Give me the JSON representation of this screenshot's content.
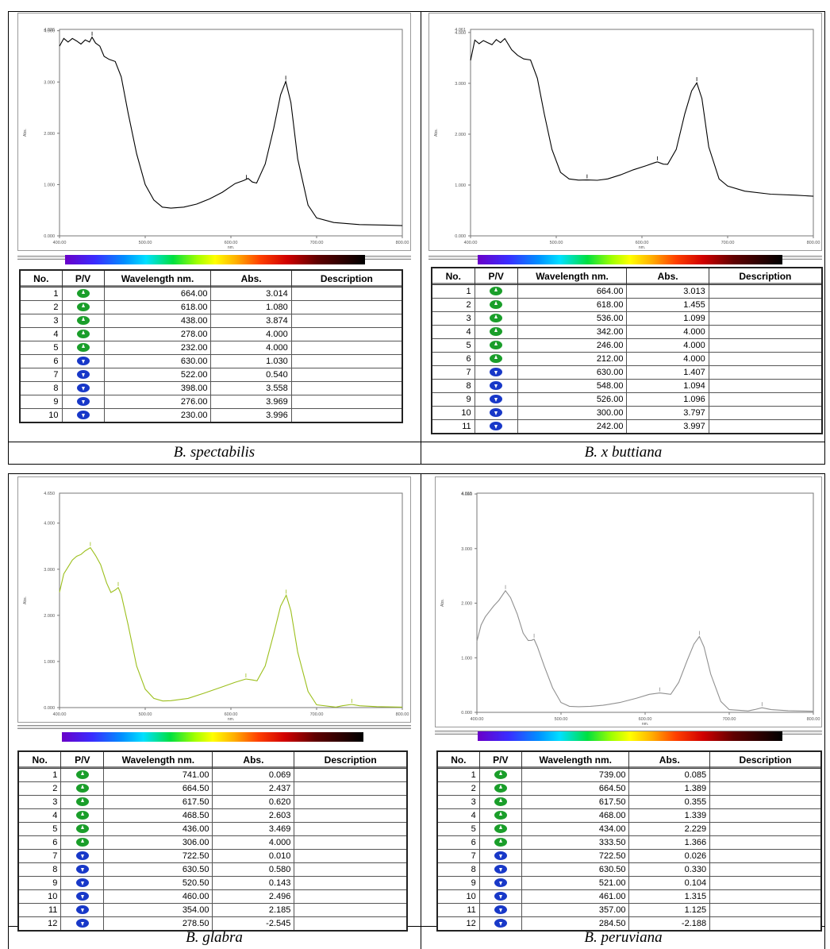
{
  "table_headers": [
    "No.",
    "P/V",
    "Wavelength nm.",
    "Abs.",
    "Description"
  ],
  "icons": {
    "peak": "peak-icon",
    "valley": "valley-icon"
  },
  "colors": {
    "peak": "#1a9e2a",
    "valley": "#1838c8"
  },
  "panels": [
    {
      "caption": "B. spectabilis",
      "ytop_label": "4.026",
      "ylabel": "Abs.",
      "xlabel": "nm.",
      "rows": [
        {
          "no": "1",
          "pv": "peak",
          "wl": "664.00",
          "abs": "3.014"
        },
        {
          "no": "2",
          "pv": "peak",
          "wl": "618.00",
          "abs": "1.080"
        },
        {
          "no": "3",
          "pv": "peak",
          "wl": "438.00",
          "abs": "3.874"
        },
        {
          "no": "4",
          "pv": "peak",
          "wl": "278.00",
          "abs": "4.000"
        },
        {
          "no": "5",
          "pv": "peak",
          "wl": "232.00",
          "abs": "4.000"
        },
        {
          "no": "6",
          "pv": "valley",
          "wl": "630.00",
          "abs": "1.030"
        },
        {
          "no": "7",
          "pv": "valley",
          "wl": "522.00",
          "abs": "0.540"
        },
        {
          "no": "8",
          "pv": "valley",
          "wl": "398.00",
          "abs": "3.558"
        },
        {
          "no": "9",
          "pv": "valley",
          "wl": "276.00",
          "abs": "3.969"
        },
        {
          "no": "10",
          "pv": "valley",
          "wl": "230.00",
          "abs": "3.996"
        }
      ]
    },
    {
      "caption": "B. x buttiana",
      "ytop_label": "4.061",
      "ylabel": "Abs.",
      "xlabel": "nm.",
      "rows": [
        {
          "no": "1",
          "pv": "peak",
          "wl": "664.00",
          "abs": "3.013"
        },
        {
          "no": "2",
          "pv": "peak",
          "wl": "618.00",
          "abs": "1.455"
        },
        {
          "no": "3",
          "pv": "peak",
          "wl": "536.00",
          "abs": "1.099"
        },
        {
          "no": "4",
          "pv": "peak",
          "wl": "342.00",
          "abs": "4.000"
        },
        {
          "no": "5",
          "pv": "peak",
          "wl": "246.00",
          "abs": "4.000"
        },
        {
          "no": "6",
          "pv": "peak",
          "wl": "212.00",
          "abs": "4.000"
        },
        {
          "no": "7",
          "pv": "valley",
          "wl": "630.00",
          "abs": "1.407"
        },
        {
          "no": "8",
          "pv": "valley",
          "wl": "548.00",
          "abs": "1.094"
        },
        {
          "no": "9",
          "pv": "valley",
          "wl": "526.00",
          "abs": "1.096"
        },
        {
          "no": "10",
          "pv": "valley",
          "wl": "300.00",
          "abs": "3.797"
        },
        {
          "no": "11",
          "pv": "valley",
          "wl": "242.00",
          "abs": "3.997"
        }
      ]
    },
    {
      "caption": "B. glabra",
      "ytop_label": "4.650",
      "ylabel": "Abs.",
      "xlabel": "nm.",
      "rows": [
        {
          "no": "1",
          "pv": "peak",
          "wl": "741.00",
          "abs": "0.069"
        },
        {
          "no": "2",
          "pv": "peak",
          "wl": "664.50",
          "abs": "2.437"
        },
        {
          "no": "3",
          "pv": "peak",
          "wl": "617.50",
          "abs": "0.620"
        },
        {
          "no": "4",
          "pv": "peak",
          "wl": "468.50",
          "abs": "2.603"
        },
        {
          "no": "5",
          "pv": "peak",
          "wl": "436.00",
          "abs": "3.469"
        },
        {
          "no": "6",
          "pv": "peak",
          "wl": "306.00",
          "abs": "4.000"
        },
        {
          "no": "7",
          "pv": "valley",
          "wl": "722.50",
          "abs": "0.010"
        },
        {
          "no": "8",
          "pv": "valley",
          "wl": "630.50",
          "abs": "0.580"
        },
        {
          "no": "9",
          "pv": "valley",
          "wl": "520.50",
          "abs": "0.143"
        },
        {
          "no": "10",
          "pv": "valley",
          "wl": "460.00",
          "abs": "2.496"
        },
        {
          "no": "11",
          "pv": "valley",
          "wl": "354.00",
          "abs": "2.185"
        },
        {
          "no": "12",
          "pv": "valley",
          "wl": "278.50",
          "abs": "-2.545"
        }
      ]
    },
    {
      "caption": "B. peruviana",
      "ytop_label": "4.015",
      "ylabel": "Abs.",
      "xlabel": "nm.",
      "rows": [
        {
          "no": "1",
          "pv": "peak",
          "wl": "739.00",
          "abs": "0.085"
        },
        {
          "no": "2",
          "pv": "peak",
          "wl": "664.50",
          "abs": "1.389"
        },
        {
          "no": "3",
          "pv": "peak",
          "wl": "617.50",
          "abs": "0.355"
        },
        {
          "no": "4",
          "pv": "peak",
          "wl": "468.00",
          "abs": "1.339"
        },
        {
          "no": "5",
          "pv": "peak",
          "wl": "434.00",
          "abs": "2.229"
        },
        {
          "no": "6",
          "pv": "peak",
          "wl": "333.50",
          "abs": "1.366"
        },
        {
          "no": "7",
          "pv": "valley",
          "wl": "722.50",
          "abs": "0.026"
        },
        {
          "no": "8",
          "pv": "valley",
          "wl": "630.50",
          "abs": "0.330"
        },
        {
          "no": "9",
          "pv": "valley",
          "wl": "521.00",
          "abs": "0.104"
        },
        {
          "no": "10",
          "pv": "valley",
          "wl": "461.00",
          "abs": "1.315"
        },
        {
          "no": "11",
          "pv": "valley",
          "wl": "357.00",
          "abs": "1.125"
        },
        {
          "no": "12",
          "pv": "valley",
          "wl": "284.50",
          "abs": "-2.188"
        }
      ]
    }
  ],
  "chart_data": [
    {
      "type": "line",
      "xlabel": "nm.",
      "ylabel": "Abs.",
      "xlim": [
        400,
        800
      ],
      "ylim": [
        0,
        4.026
      ],
      "xticks": [
        "400.00",
        "500.00",
        "600.00",
        "700.00",
        "800.00"
      ],
      "yticks": [
        "0.000",
        "1.000",
        "2.000",
        "3.000",
        "4.000"
      ],
      "line_color": "#000000",
      "series": [
        {
          "x": [
            400,
            405,
            410,
            415,
            420,
            425,
            430,
            435,
            438,
            442,
            447,
            452,
            458,
            465,
            472,
            480,
            490,
            500,
            510,
            520,
            530,
            545,
            560,
            575,
            590,
            605,
            615,
            620,
            625,
            630,
            640,
            650,
            658,
            664,
            670,
            678,
            690,
            700,
            720,
            750,
            780,
            800
          ],
          "values": [
            3.7,
            3.85,
            3.78,
            3.85,
            3.8,
            3.74,
            3.82,
            3.78,
            3.874,
            3.76,
            3.7,
            3.5,
            3.44,
            3.4,
            3.1,
            2.4,
            1.6,
            1.0,
            0.7,
            0.56,
            0.54,
            0.56,
            0.62,
            0.72,
            0.85,
            1.02,
            1.08,
            1.12,
            1.05,
            1.03,
            1.4,
            2.1,
            2.75,
            3.01,
            2.6,
            1.5,
            0.6,
            0.35,
            0.26,
            0.22,
            0.21,
            0.2
          ]
        }
      ]
    },
    {
      "type": "line",
      "xlabel": "nm.",
      "ylabel": "Abs.",
      "xlim": [
        400,
        800
      ],
      "ylim": [
        0,
        4.061
      ],
      "xticks": [
        "400.00",
        "500.00",
        "600.00",
        "700.00",
        "800.00"
      ],
      "yticks": [
        "0.000",
        "1.000",
        "2.000",
        "3.000",
        "4.000"
      ],
      "line_color": "#000000",
      "series": [
        {
          "x": [
            400,
            405,
            410,
            415,
            420,
            425,
            430,
            435,
            440,
            448,
            455,
            462,
            470,
            478,
            486,
            495,
            505,
            515,
            526,
            536,
            548,
            560,
            575,
            590,
            605,
            615,
            618,
            625,
            630,
            640,
            650,
            658,
            664,
            670,
            678,
            690,
            700,
            720,
            750,
            780,
            800
          ],
          "values": [
            3.45,
            3.85,
            3.78,
            3.84,
            3.8,
            3.76,
            3.86,
            3.8,
            3.88,
            3.66,
            3.55,
            3.48,
            3.46,
            3.1,
            2.4,
            1.7,
            1.25,
            1.12,
            1.096,
            1.099,
            1.094,
            1.12,
            1.2,
            1.3,
            1.38,
            1.44,
            1.455,
            1.41,
            1.407,
            1.7,
            2.4,
            2.85,
            3.01,
            2.7,
            1.75,
            1.12,
            0.98,
            0.88,
            0.82,
            0.8,
            0.78
          ]
        }
      ]
    },
    {
      "type": "line",
      "xlabel": "nm.",
      "ylabel": "Abs.",
      "xlim": [
        400,
        800
      ],
      "ylim": [
        0,
        4.65
      ],
      "xticks": [
        "400.00",
        "500.00",
        "600.00",
        "700.00",
        "800.00"
      ],
      "yticks": [
        "0.000",
        "1.000",
        "2.000",
        "3.000",
        "4.000"
      ],
      "line_color": "#9cbf1c",
      "series": [
        {
          "x": [
            400,
            405,
            410,
            415,
            420,
            425,
            430,
            436,
            442,
            448,
            455,
            460,
            465,
            468.5,
            472,
            480,
            490,
            500,
            510,
            520.5,
            530,
            550,
            570,
            590,
            605,
            617.5,
            625,
            630.5,
            640,
            650,
            658,
            664.5,
            670,
            678,
            690,
            700,
            722.5,
            730,
            741,
            750,
            770,
            800
          ],
          "values": [
            2.5,
            2.9,
            3.05,
            3.2,
            3.28,
            3.32,
            3.4,
            3.469,
            3.3,
            3.1,
            2.7,
            2.496,
            2.55,
            2.603,
            2.45,
            1.8,
            0.9,
            0.4,
            0.2,
            0.143,
            0.15,
            0.2,
            0.32,
            0.45,
            0.55,
            0.62,
            0.6,
            0.58,
            0.9,
            1.6,
            2.2,
            2.437,
            2.1,
            1.2,
            0.35,
            0.06,
            0.01,
            0.04,
            0.069,
            0.04,
            0.02,
            0.01
          ]
        }
      ]
    },
    {
      "type": "line",
      "xlabel": "nm.",
      "ylabel": "Abs.",
      "xlim": [
        400,
        800
      ],
      "ylim": [
        0,
        4.015
      ],
      "xticks": [
        "400.00",
        "500.00",
        "600.00",
        "700.00",
        "800.00"
      ],
      "yticks": [
        "0.000",
        "1.000",
        "2.000",
        "3.000",
        "4.000"
      ],
      "line_color": "#909090",
      "series": [
        {
          "x": [
            400,
            405,
            410,
            415,
            420,
            426,
            434,
            440,
            448,
            455,
            461,
            465,
            468,
            472,
            480,
            490,
            500,
            510,
            521,
            535,
            550,
            570,
            590,
            605,
            617.5,
            625,
            630.5,
            640,
            650,
            658,
            664.5,
            670,
            678,
            690,
            700,
            722.5,
            730,
            739,
            750,
            770,
            800
          ],
          "values": [
            1.3,
            1.6,
            1.75,
            1.85,
            1.95,
            2.05,
            2.229,
            2.1,
            1.8,
            1.45,
            1.315,
            1.32,
            1.339,
            1.2,
            0.85,
            0.45,
            0.18,
            0.11,
            0.104,
            0.11,
            0.13,
            0.18,
            0.26,
            0.33,
            0.355,
            0.34,
            0.33,
            0.55,
            0.95,
            1.25,
            1.389,
            1.2,
            0.7,
            0.2,
            0.05,
            0.026,
            0.05,
            0.085,
            0.05,
            0.03,
            0.02
          ]
        }
      ]
    }
  ]
}
